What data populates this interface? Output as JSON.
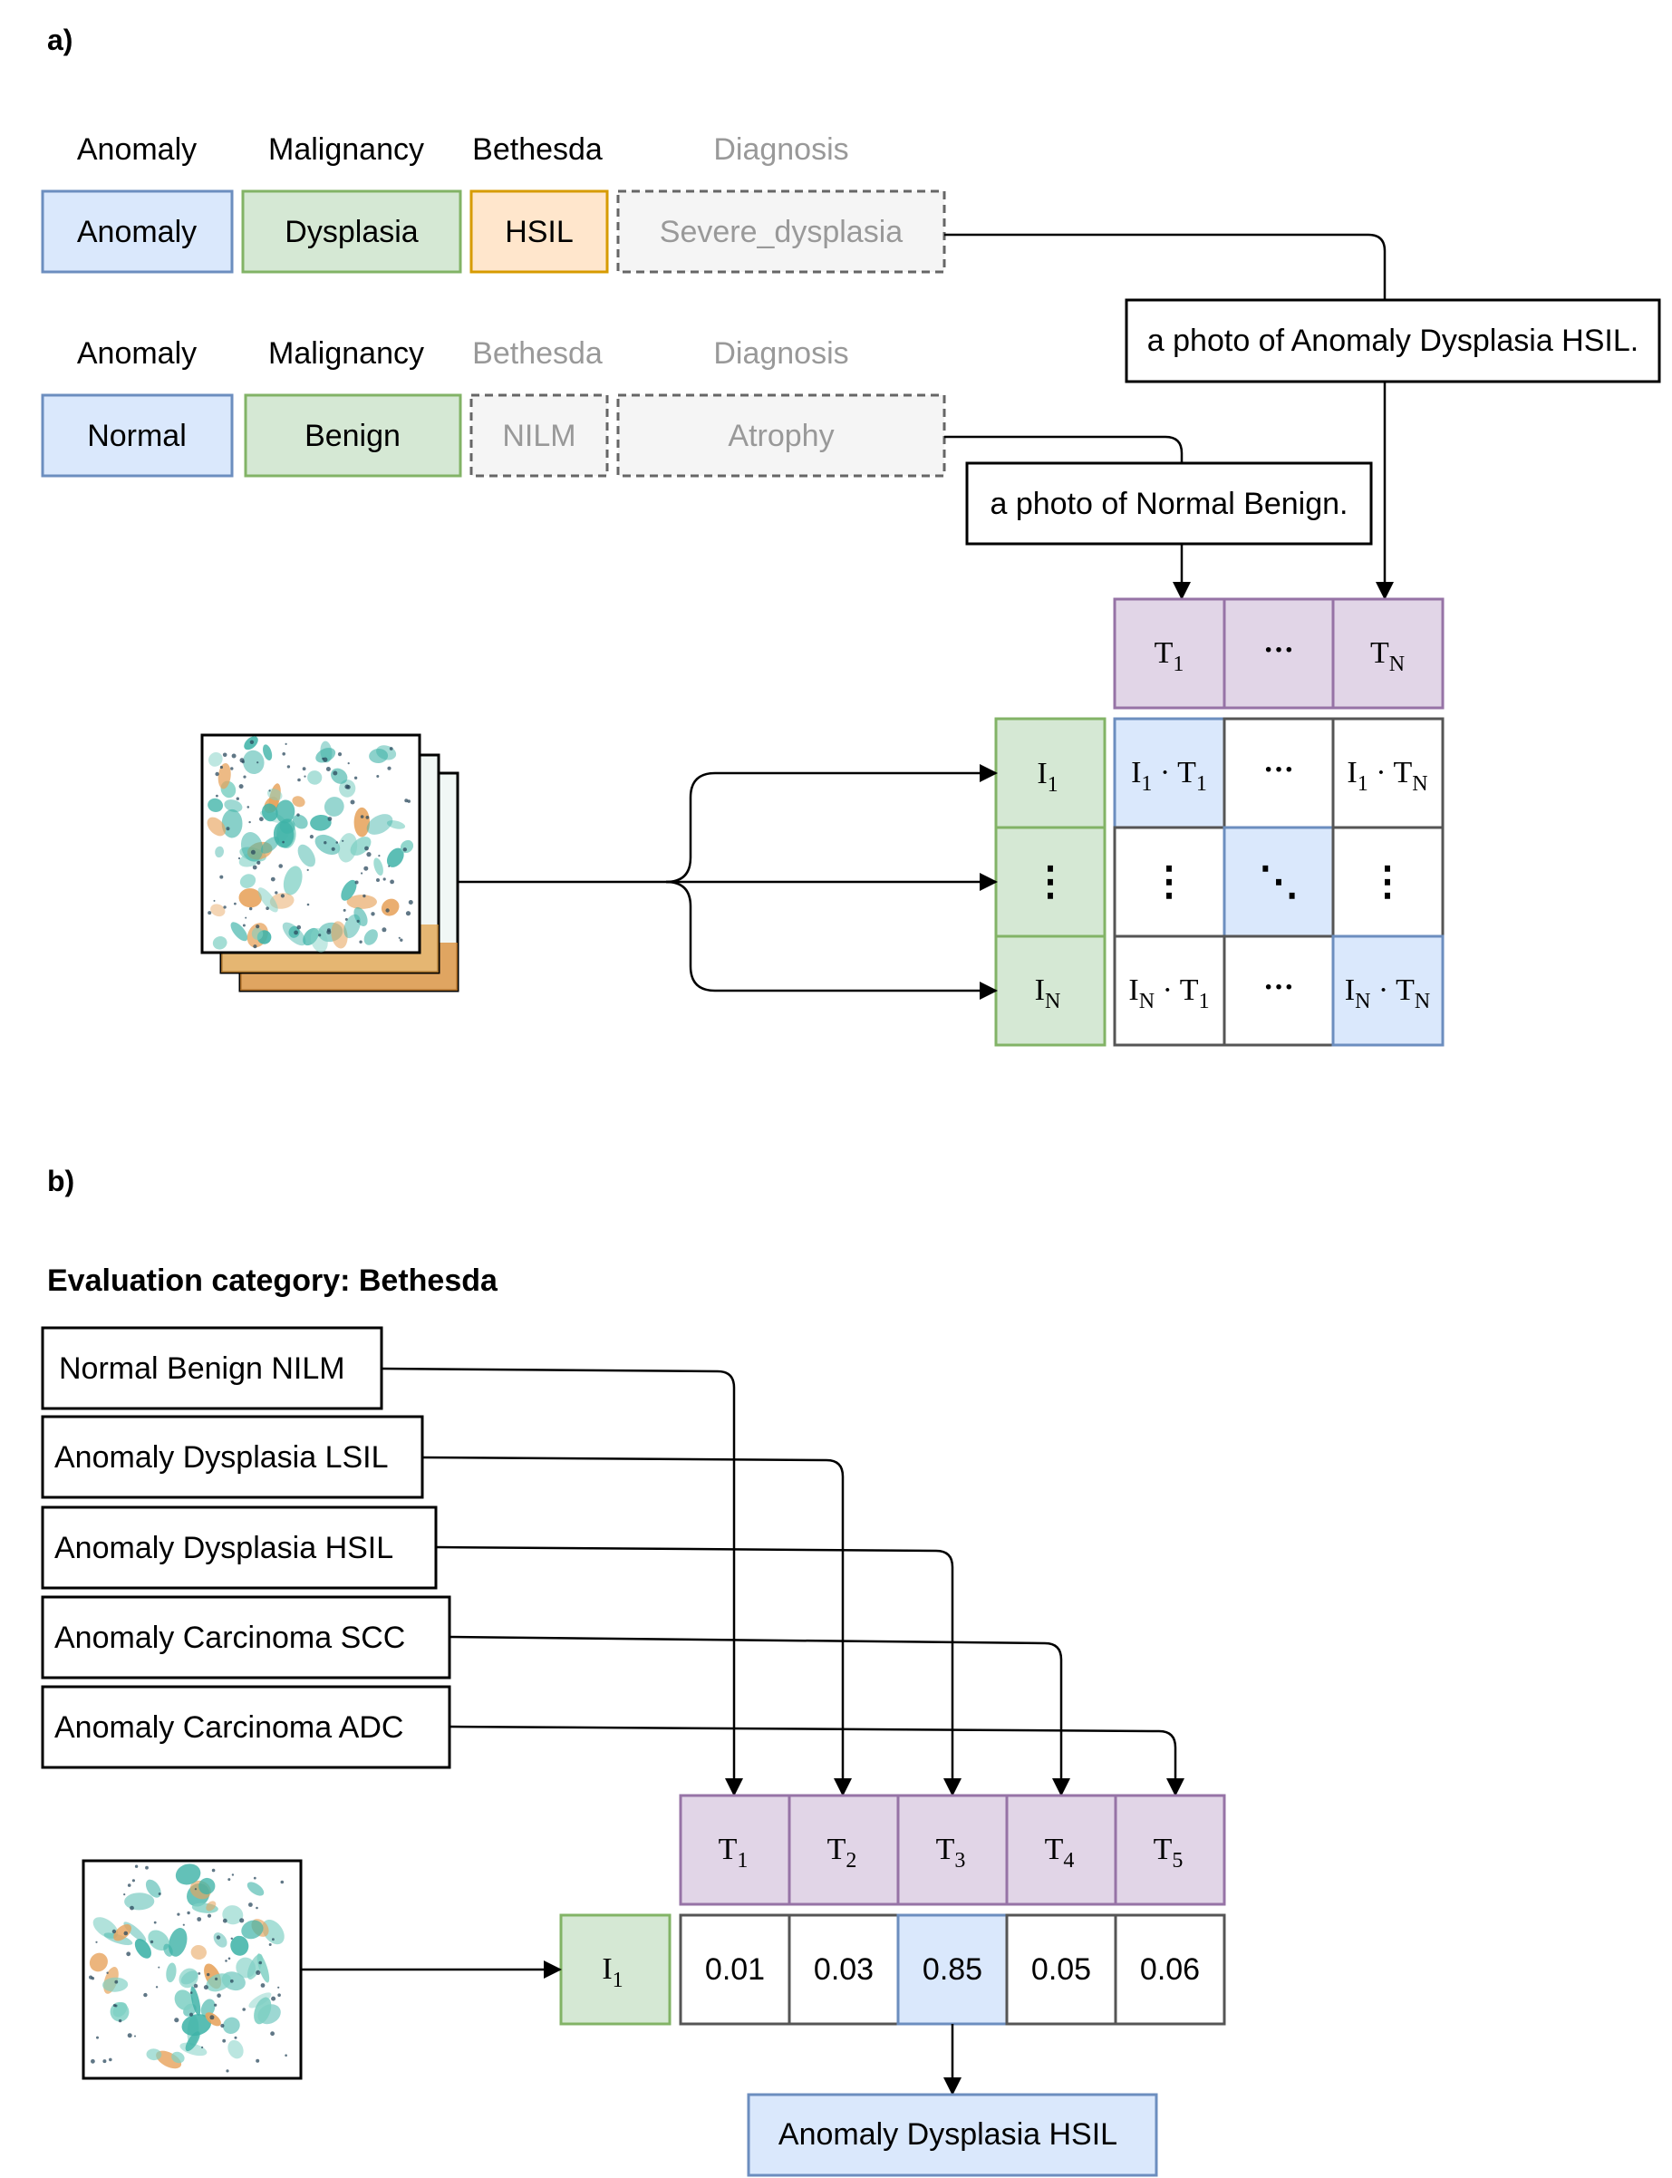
{
  "panel_a": {
    "label": "a)",
    "row1": {
      "headers": [
        "Anomaly",
        "Malignancy",
        "Bethesda",
        "Diagnosis"
      ],
      "values": [
        "Anomaly",
        "Dysplasia",
        "HSIL",
        "Severe_dysplasia"
      ]
    },
    "row2": {
      "headers": [
        "Anomaly",
        "Malignancy",
        "Bethesda",
        "Diagnosis"
      ],
      "values": [
        "Normal",
        "Benign",
        "NILM",
        "Atrophy"
      ]
    },
    "prompt1": "a photo of Anomaly Dysplasia HSIL.",
    "prompt2": "a photo of Normal Benign.",
    "text_tokens": [
      {
        "base": "T",
        "sub": "1"
      },
      {
        "base": "···",
        "sub": ""
      },
      {
        "base": "T",
        "sub": "N"
      }
    ],
    "image_tokens": [
      {
        "base": "I",
        "sub": "1"
      },
      {
        "base": "⋮",
        "sub": ""
      },
      {
        "base": "I",
        "sub": "N"
      }
    ],
    "matrix": {
      "r0": {
        "c0_i": "1",
        "c0_t": "1",
        "c1": "···",
        "c2_i": "1",
        "c2_t": "N"
      },
      "r1": {
        "c0": "⋮",
        "c1": "⋱",
        "c2": "⋮"
      },
      "r2": {
        "c0_i": "N",
        "c0_t": "1",
        "c1": "···",
        "c2_i": "N",
        "c2_t": "N"
      }
    }
  },
  "panel_b": {
    "label": "b)",
    "title": "Evaluation category: Bethesda",
    "prompts": [
      "Normal Benign NILM",
      "Anomaly Dysplasia LSIL",
      "Anomaly Dysplasia HSIL",
      "Anomaly Carcinoma SCC",
      "Anomaly Carcinoma ADC"
    ],
    "text_tokens": [
      "1",
      "2",
      "3",
      "4",
      "5"
    ],
    "image_token": "1",
    "scores": [
      "0.01",
      "0.03",
      "0.85",
      "0.05",
      "0.06"
    ],
    "result": "Anomaly Dysplasia HSIL"
  },
  "colors": {
    "blue_fill": "#dae8fc",
    "blue_stroke": "#6c8ebf",
    "green_fill": "#d5e8d4",
    "green_stroke": "#82b366",
    "orange_fill": "#ffe6cc",
    "orange_stroke": "#d79b00",
    "gray_fill": "#f5f5f5",
    "gray_stroke": "#666666",
    "purple_fill": "#e1d5e7",
    "purple_stroke": "#9673a6"
  }
}
